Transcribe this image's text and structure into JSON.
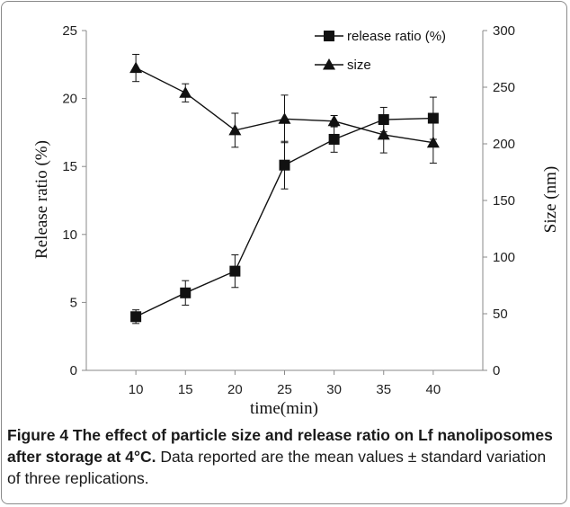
{
  "chart_data": {
    "type": "line",
    "x": [
      10,
      15,
      20,
      25,
      30,
      35,
      40
    ],
    "xlabel": "time(min)",
    "xlim": [
      5,
      45
    ],
    "x_ticks": [
      "10",
      "15",
      "20",
      "25",
      "30",
      "35",
      "40"
    ],
    "ylabel_left": "Release ratio (%)",
    "ylim_left": [
      0,
      25
    ],
    "y_ticks_left": [
      "0",
      "5",
      "10",
      "15",
      "20",
      "25"
    ],
    "ylabel_right": "Size (nm)",
    "ylim_right": [
      0,
      300
    ],
    "y_ticks_right": [
      "0",
      "50",
      "100",
      "150",
      "200",
      "250",
      "300"
    ],
    "grid": false,
    "legend_position": "top-right",
    "series": [
      {
        "name": "release ratio (%)",
        "axis": "left",
        "marker": "square",
        "values": [
          3.95,
          5.7,
          7.3,
          15.1,
          17.0,
          18.45,
          18.55
        ],
        "error": [
          0.5,
          0.9,
          1.2,
          1.75,
          0.95,
          0.9,
          1.55
        ]
      },
      {
        "name": "size",
        "axis": "right",
        "marker": "triangle",
        "values": [
          267,
          245,
          212,
          222,
          220,
          208,
          201
        ],
        "error": [
          12,
          8,
          15,
          21,
          5,
          16,
          18
        ]
      }
    ],
    "colors": {
      "line": "#111111",
      "axis": "#8a8a8a"
    }
  },
  "caption": {
    "title": "Figure 4 The effect of particle size and release ratio on Lf nanoliposomes after storage at 4°C.",
    "body": " Data reported are the mean values ± standard variation of three replications."
  }
}
